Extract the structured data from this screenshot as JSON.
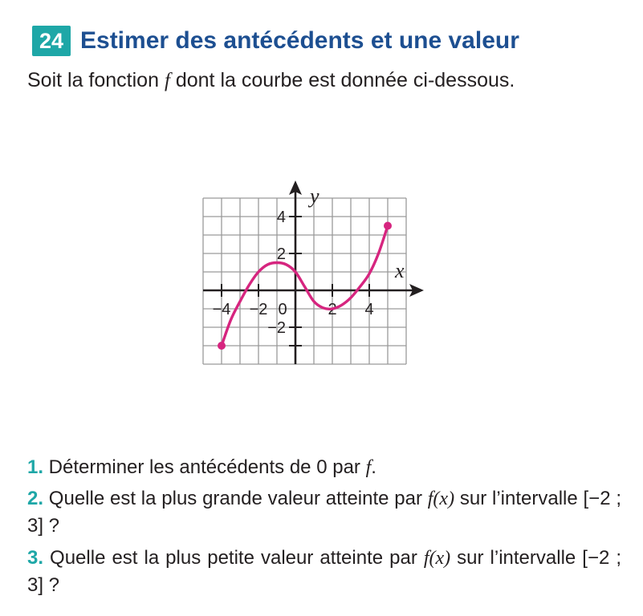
{
  "exercise": {
    "number": "24",
    "title": "Estimer des antécédents et une valeur",
    "intro_before": "Soit la fonction ",
    "intro_var": "f",
    "intro_after": " dont la courbe est donnée ci-dessous."
  },
  "questions": [
    {
      "num": "1.",
      "text": " Déterminer les antécédents de 0 par ",
      "var": "f",
      "tail": "."
    },
    {
      "num": "2.",
      "text": " Quelle est la plus grande valeur atteinte par ",
      "var": "f(x)",
      "tail": " sur l’intervalle [−2 ; 3] ?"
    },
    {
      "num": "3.",
      "text": " Quelle est la plus petite valeur atteinte par ",
      "var": "f(x)",
      "tail": " sur l’intervalle [−2 ; 3] ?"
    }
  ],
  "chart_data": {
    "type": "line",
    "xlabel": "x",
    "ylabel": "y",
    "xlim": [
      -5,
      6
    ],
    "ylim": [
      -4,
      5
    ],
    "grid": true,
    "x_tick_labels": [
      "−4",
      "−2",
      "0",
      "2",
      "4"
    ],
    "y_tick_labels": [
      "4",
      "2",
      "−2"
    ],
    "curve_color": "#d6257f",
    "series": [
      {
        "x": [
          -4,
          -3.5,
          -3,
          -2.5,
          -2,
          -1.5,
          -1,
          -0.5,
          0,
          0.5,
          1,
          1.5,
          2,
          2.5,
          3,
          3.5,
          4,
          4.5,
          5
        ],
        "y": [
          -3,
          -1.6,
          -0.6,
          0.3,
          1.0,
          1.4,
          1.5,
          1.4,
          1.0,
          0.2,
          -0.6,
          -0.95,
          -1.0,
          -0.8,
          -0.4,
          0.2,
          0.9,
          2.0,
          3.5
        ]
      }
    ],
    "endpoints": [
      [
        -4,
        -3
      ],
      [
        5,
        3.5
      ]
    ]
  }
}
